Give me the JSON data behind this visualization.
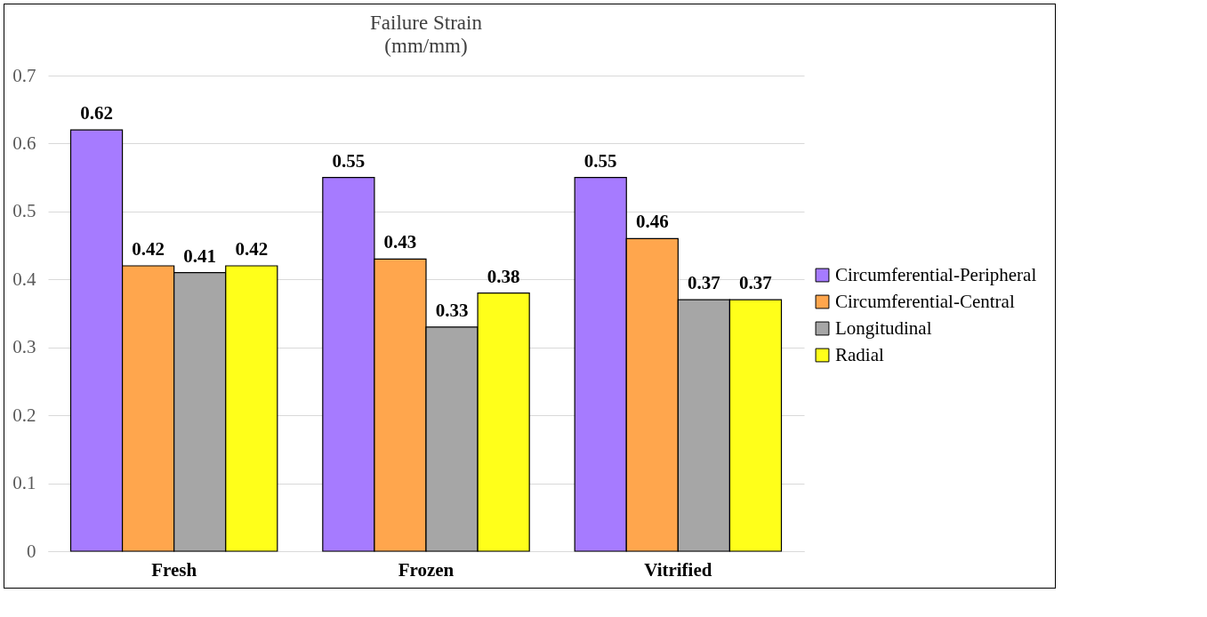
{
  "chart_data": {
    "type": "bar",
    "title": "Failure Strain",
    "subtitle": "(mm/mm)",
    "categories": [
      "Fresh",
      "Frozen",
      "Vitrified"
    ],
    "series": [
      {
        "name": "Circumferential-Peripheral",
        "color": "#a67bff",
        "values": [
          0.62,
          0.55,
          0.55
        ]
      },
      {
        "name": "Circumferential-Central",
        "color": "#ffa64d",
        "values": [
          0.42,
          0.43,
          0.46
        ]
      },
      {
        "name": "Longitudinal",
        "color": "#a6a6a6",
        "values": [
          0.41,
          0.33,
          0.37
        ]
      },
      {
        "name": "Radial",
        "color": "#ffff1a",
        "values": [
          0.42,
          0.38,
          0.37
        ]
      }
    ],
    "ylim": [
      0,
      0.7
    ],
    "yticks": [
      0,
      0.1,
      0.2,
      0.3,
      0.4,
      0.5,
      0.6,
      0.7
    ],
    "grid": "y",
    "legend": "right",
    "data_labels": true
  }
}
